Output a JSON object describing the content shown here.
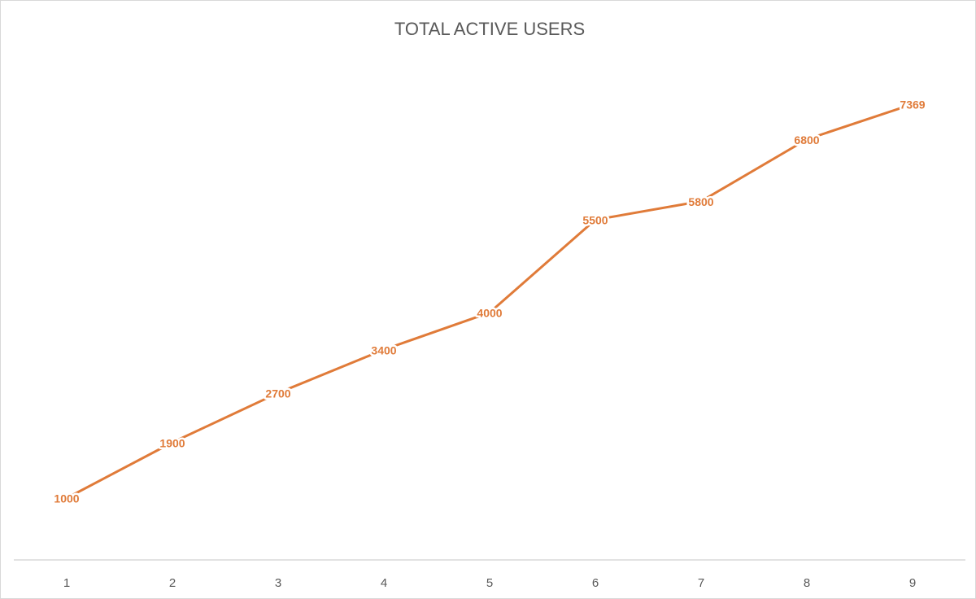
{
  "chart_data": {
    "type": "line",
    "title": "TOTAL ACTIVE USERS",
    "categories": [
      1,
      2,
      3,
      4,
      5,
      6,
      7,
      8,
      9
    ],
    "values": [
      1000,
      1900,
      2700,
      3400,
      4000,
      5500,
      5800,
      6800,
      7369
    ],
    "color": "#e07b39",
    "data_labels": true
  }
}
